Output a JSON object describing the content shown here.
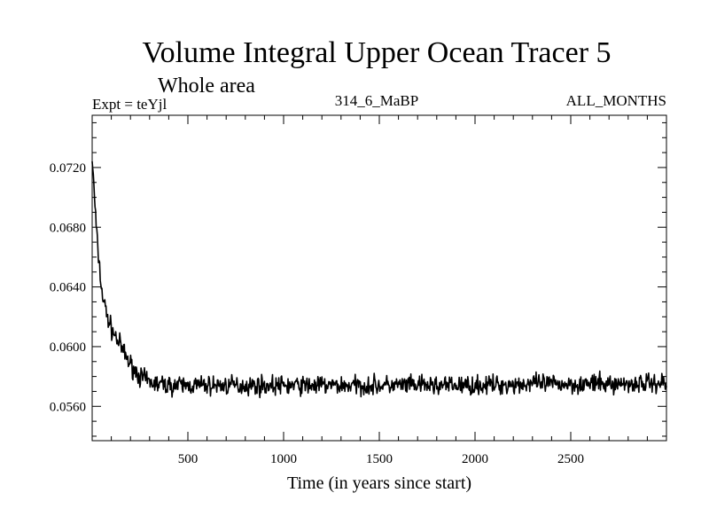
{
  "chart_data": {
    "type": "line",
    "title": "Volume Integral Upper Ocean Tracer 5",
    "subtitle": "Whole area",
    "header_left": "Expt = teYjl",
    "header_center": "314_6_MaBP",
    "header_right": "ALL_MONTHS",
    "xlabel": "Time (in years since start)",
    "ylabel": "",
    "xlim": [
      0,
      3000
    ],
    "ylim": [
      0.0537,
      0.0755
    ],
    "x_ticks": [
      500,
      1000,
      1500,
      2000,
      2500
    ],
    "x_tick_labels": [
      "500",
      "1000",
      "1500",
      "2000",
      "2500"
    ],
    "y_ticks": [
      0.056,
      0.06,
      0.064,
      0.068,
      0.072
    ],
    "y_tick_labels": [
      "0.0560",
      "0.0600",
      "0.0640",
      "0.0680",
      "0.0720"
    ],
    "grid": false,
    "series": [
      {
        "color": "#000000",
        "x": [
          0,
          10,
          25,
          50,
          75,
          100,
          150,
          200,
          250,
          300,
          400,
          500,
          750,
          1000,
          1250,
          1500,
          1750,
          2000,
          2250,
          2500,
          2750,
          3000
        ],
        "y": [
          0.0726,
          0.0705,
          0.0672,
          0.0637,
          0.0622,
          0.0612,
          0.06,
          0.0588,
          0.058,
          0.0576,
          0.0574,
          0.0574,
          0.0574,
          0.0574,
          0.0574,
          0.0574,
          0.0574,
          0.0574,
          0.0575,
          0.0575,
          0.0575,
          0.0576
        ]
      }
    ],
    "noise_amplitude": 0.0007
  }
}
